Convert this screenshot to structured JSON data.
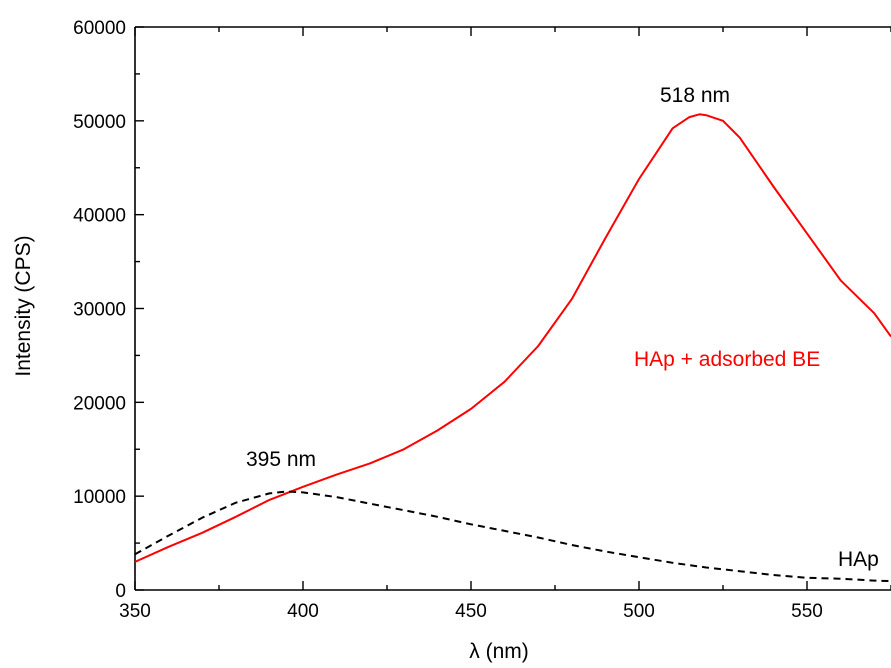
{
  "chart_data": {
    "type": "line",
    "xlabel": "λ (nm)",
    "ylabel": "Intensity (CPS)",
    "xlim": [
      350,
      575
    ],
    "ylim": [
      0,
      60000
    ],
    "x_ticks": [
      350,
      400,
      450,
      500,
      550
    ],
    "y_ticks": [
      0,
      10000,
      20000,
      30000,
      40000,
      50000,
      60000
    ],
    "grid": false,
    "series": [
      {
        "name": "HAp + adsorbed BE",
        "color": "#ff0000",
        "style": "solid",
        "x": [
          350,
          360,
          370,
          380,
          390,
          400,
          410,
          420,
          430,
          440,
          450,
          460,
          470,
          480,
          490,
          500,
          505,
          510,
          515,
          518,
          520,
          525,
          530,
          540,
          550,
          560,
          570,
          575
        ],
        "y": [
          3000,
          4600,
          6100,
          7800,
          9600,
          11000,
          12300,
          13500,
          15000,
          17000,
          19300,
          22200,
          26000,
          31000,
          37500,
          43800,
          46500,
          49200,
          50400,
          50700,
          50600,
          50000,
          48200,
          43000,
          38000,
          33000,
          29500,
          27000
        ]
      },
      {
        "name": "HAp",
        "color": "#000000",
        "style": "dashed",
        "x": [
          350,
          360,
          370,
          380,
          390,
          395,
          400,
          410,
          420,
          430,
          440,
          450,
          460,
          470,
          480,
          490,
          500,
          510,
          520,
          530,
          540,
          550,
          560,
          570,
          575
        ],
        "y": [
          3800,
          5800,
          7700,
          9300,
          10300,
          10500,
          10400,
          9900,
          9200,
          8500,
          7800,
          7000,
          6300,
          5600,
          4800,
          4100,
          3500,
          2900,
          2400,
          2000,
          1600,
          1300,
          1200,
          1000,
          950
        ]
      }
    ],
    "annotations": [
      {
        "text": "518 nm",
        "x": 518,
        "y": 53000,
        "color": "#000000"
      },
      {
        "text": "395 nm",
        "x": 395,
        "y": 13300,
        "color": "#000000"
      }
    ]
  },
  "series_labels": {
    "red": "HAp + adsorbed BE",
    "black": "HAp"
  },
  "annotation_labels": {
    "peak_red": "518 nm",
    "peak_black": "395 nm"
  }
}
